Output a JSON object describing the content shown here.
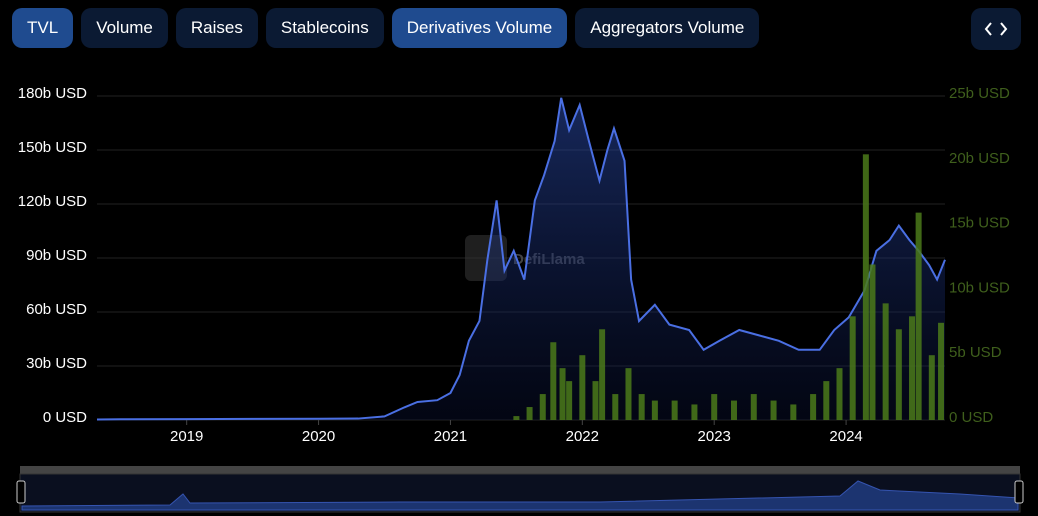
{
  "tabs": [
    "TVL",
    "Volume",
    "Raises",
    "Stablecoins",
    "Derivatives Volume",
    "Aggregators Volume"
  ],
  "active_tabs": [
    0,
    4
  ],
  "chart_data": {
    "type": "line",
    "watermark": "DefiLlama",
    "xlim": [
      2018.32,
      2024.75
    ],
    "xticks": [
      2019,
      2020,
      2021,
      2022,
      2023,
      2024
    ],
    "ylim": [
      0,
      180
    ],
    "yticks": [
      {
        "value": 0,
        "label": "0 USD"
      },
      {
        "value": 30,
        "label": "30b USD"
      },
      {
        "value": 60,
        "label": "60b USD"
      },
      {
        "value": 90,
        "label": "90b USD"
      },
      {
        "value": 120,
        "label": "120b USD"
      },
      {
        "value": 150,
        "label": "150b USD"
      },
      {
        "value": 180,
        "label": "180b USD"
      }
    ],
    "y2lim": [
      0,
      25
    ],
    "y2ticks": [
      {
        "value": 0,
        "label": "0 USD"
      },
      {
        "value": 5,
        "label": "5b USD"
      },
      {
        "value": 10,
        "label": "10b USD"
      },
      {
        "value": 15,
        "label": "15b USD"
      },
      {
        "value": 20,
        "label": "20b USD"
      },
      {
        "value": 25,
        "label": "25b USD"
      }
    ],
    "grid": true,
    "series": [
      {
        "name": "TVL",
        "color": "#4a6fe3",
        "x": [
          2018.32,
          2018.5,
          2019,
          2019.5,
          2020,
          2020.3,
          2020.5,
          2020.65,
          2020.75,
          2020.9,
          2021.0,
          2021.07,
          2021.14,
          2021.22,
          2021.28,
          2021.35,
          2021.41,
          2021.48,
          2021.56,
          2021.64,
          2021.71,
          2021.79,
          2021.84,
          2021.9,
          2021.98,
          2022.05,
          2022.13,
          2022.19,
          2022.24,
          2022.32,
          2022.37,
          2022.43,
          2022.55,
          2022.66,
          2022.81,
          2022.92,
          2023.04,
          2023.19,
          2023.34,
          2023.49,
          2023.64,
          2023.8,
          2023.91,
          2024.02,
          2024.14,
          2024.23,
          2024.33,
          2024.4,
          2024.48,
          2024.55,
          2024.63,
          2024.69,
          2024.75
        ],
        "values": [
          0.3,
          0.4,
          0.5,
          0.6,
          0.7,
          0.8,
          2,
          7,
          10,
          11,
          15,
          25,
          44,
          55,
          89,
          122,
          83,
          94,
          78,
          122,
          136,
          155,
          179,
          161,
          175,
          155,
          133,
          150,
          162,
          144,
          78,
          55,
          64,
          53,
          50,
          39,
          44,
          50,
          47,
          44,
          39,
          39,
          50,
          57,
          72,
          94,
          100,
          108,
          100,
          94,
          86,
          78,
          89
        ]
      },
      {
        "name": "Derivatives Volume",
        "color": "#4b7a1a",
        "axis": "y2",
        "x": [
          2021.5,
          2021.6,
          2021.7,
          2021.78,
          2021.85,
          2021.9,
          2022.0,
          2022.1,
          2022.15,
          2022.25,
          2022.35,
          2022.45,
          2022.55,
          2022.7,
          2022.85,
          2023.0,
          2023.15,
          2023.3,
          2023.45,
          2023.6,
          2023.75,
          2023.85,
          2023.95,
          2024.05,
          2024.15,
          2024.2,
          2024.3,
          2024.4,
          2024.5,
          2024.55,
          2024.65,
          2024.72
        ],
        "values": [
          0.3,
          1,
          2,
          6,
          4,
          3,
          5,
          3,
          7,
          2,
          4,
          2,
          1.5,
          1.5,
          1.2,
          2,
          1.5,
          2,
          1.5,
          1.2,
          2,
          3,
          4,
          8,
          20.5,
          12,
          9,
          7,
          8,
          16,
          5,
          7.5
        ]
      }
    ]
  }
}
